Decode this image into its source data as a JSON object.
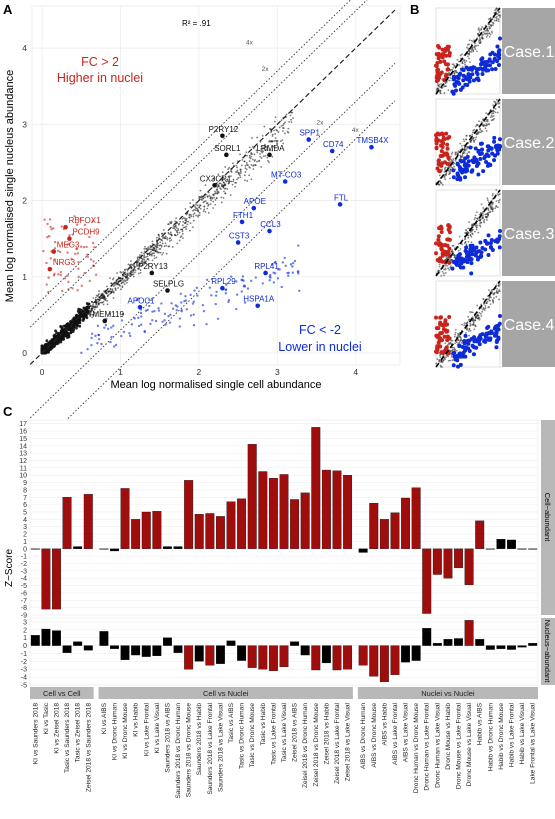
{
  "colors": {
    "cell": "#0d2bd6",
    "nuclei": "#c8241c",
    "neutral": "#111111",
    "panel_bg": "#ebebeb",
    "strip": "#b8b8b8",
    "bar": "#a00d0d",
    "bar_dark": "#000000"
  },
  "panelA": {
    "label": "A",
    "r2": "R² = .91",
    "fc_up_line1": "FC > 2",
    "fc_up_line2": "Higher in nuclei",
    "fc_down_line1": "FC < -2",
    "fc_down_line2": "Lower in nuclei",
    "xlabel": "Mean log normalised single cell abundance",
    "ylabel": "Mean log normalised single nucleus abundance",
    "line_labels": [
      "4x",
      "2x",
      "2x",
      "4x"
    ]
  },
  "panelB": {
    "label": "B",
    "cases": [
      "Case.1",
      "Case.2",
      "Case.3",
      "Case.4"
    ]
  },
  "panelC": {
    "label": "C",
    "ylabel": "Z−Score",
    "facet_top": "Cell−abundant",
    "facet_bottom": "Nucleus−abundant",
    "groups": [
      "Cell vs Cell",
      "Cell vs Nuclei",
      "Nuclei vs Nuclei"
    ]
  },
  "chart_data": [
    {
      "type": "scatter",
      "xlim": [
        0,
        4.5
      ],
      "ylim": [
        0,
        4.5
      ],
      "x_ticks": [
        "0",
        "1",
        "2",
        "3",
        "4"
      ],
      "y_ticks": [
        "0",
        "1",
        "2",
        "3",
        "4"
      ],
      "labeled_genes": [
        {
          "gene": "P2RY12",
          "x": 2.3,
          "y": 2.85,
          "group": "neutral"
        },
        {
          "gene": "SORL1",
          "x": 2.35,
          "y": 2.6,
          "group": "neutral"
        },
        {
          "gene": "LRMDA",
          "x": 2.9,
          "y": 2.6,
          "group": "neutral"
        },
        {
          "gene": "CX3CR1",
          "x": 2.2,
          "y": 2.2,
          "group": "neutral"
        },
        {
          "gene": "P2RY13",
          "x": 1.4,
          "y": 1.05,
          "group": "neutral"
        },
        {
          "gene": "SELPLG",
          "x": 1.6,
          "y": 0.82,
          "group": "neutral"
        },
        {
          "gene": "TMEM119",
          "x": 0.8,
          "y": 0.42,
          "group": "neutral"
        },
        {
          "gene": "SPP1",
          "x": 3.4,
          "y": 2.8,
          "group": "cell"
        },
        {
          "gene": "TMSB4X",
          "x": 4.2,
          "y": 2.7,
          "group": "cell"
        },
        {
          "gene": "CD74",
          "x": 3.7,
          "y": 2.65,
          "group": "cell"
        },
        {
          "gene": "MT-CO3",
          "x": 3.1,
          "y": 2.25,
          "group": "cell"
        },
        {
          "gene": "APOE",
          "x": 2.7,
          "y": 1.9,
          "group": "cell"
        },
        {
          "gene": "FTH1",
          "x": 2.55,
          "y": 1.72,
          "group": "cell"
        },
        {
          "gene": "FTL",
          "x": 3.8,
          "y": 1.95,
          "group": "cell"
        },
        {
          "gene": "CCL3",
          "x": 2.9,
          "y": 1.6,
          "group": "cell"
        },
        {
          "gene": "CST3",
          "x": 2.5,
          "y": 1.45,
          "group": "cell"
        },
        {
          "gene": "RPL41",
          "x": 2.85,
          "y": 1.05,
          "group": "cell"
        },
        {
          "gene": "RPL29",
          "x": 2.3,
          "y": 0.85,
          "group": "cell"
        },
        {
          "gene": "HSPA1A",
          "x": 2.75,
          "y": 0.62,
          "group": "cell"
        },
        {
          "gene": "APOC1",
          "x": 1.25,
          "y": 0.6,
          "group": "cell"
        },
        {
          "gene": "RBFOX1",
          "x": 0.3,
          "y": 1.65,
          "group": "nuclei"
        },
        {
          "gene": "PCDH9",
          "x": 0.35,
          "y": 1.5,
          "group": "nuclei"
        },
        {
          "gene": "MEG3",
          "x": 0.15,
          "y": 1.33,
          "group": "nuclei"
        },
        {
          "gene": "NRG3",
          "x": 0.1,
          "y": 1.1,
          "group": "nuclei"
        }
      ]
    },
    {
      "type": "bar",
      "categories": [
        "KI vs Saunders 2018",
        "KI vs Tasic",
        "KI vs Zeisel 2018",
        "Tasic vs Saunders 2018",
        "Tasic vs Zeisel 2018",
        "Zeisel 2018 vs Saunders 2018",
        "KI vs AIBS",
        "KI vs Dronc Human",
        "KI vs Dronc Mouse",
        "KI vs Habib",
        "KI vs Lake Frontal",
        "KI vs Lake Visual",
        "Saunders 2018 vs AIBS",
        "Saunders 2018 vs Dronc Human",
        "Saunders 2018 vs Dronc Mouse",
        "Saunders 2018 vs Habib",
        "Saunders 2018 vs Lake Frontal",
        "Saunders 2018 vs Lake Visual",
        "Tasic vs AIBS",
        "Tasic vs Dronc Human",
        "Tasic vs Dronc Mouse",
        "Tasic vs Habib",
        "Tasic vs Lake Frontal",
        "Tasic vs Lake Visual",
        "Zeisel 2018 vs AIBS",
        "Zeisel 2018 vs Dronc Human",
        "Zeisel 2018 vs Dronc Mouse",
        "Zeisel 2018 vs Habib",
        "Zeisel 2018 vs Lake Frontal",
        "Zeisel 2018 vs Lake Visual",
        "AIBS vs Dronc Human",
        "AIBS vs Dronc Mouse",
        "AIBS vs Habib",
        "AIBS vs Lake Frontal",
        "AIBS vs Lake Visual",
        "Dronc Human vs Dronc Mouse",
        "Dronc Human vs Lake Frontal",
        "Dronc Human vs Lake Visual",
        "Dronc Mouse vs Habib",
        "Dronc Mouse vs Lake Frontal",
        "Dronc Mouse vs Lake Visual",
        "Habib vs AIBS",
        "Habib vs Dronc Human",
        "Habib vs Dronc Mouse",
        "Habib vs Lake Frontal",
        "Habib vs Lake Visual",
        "Lake Frontal vs Lake Visual"
      ],
      "group_sizes": [
        6,
        24,
        17
      ],
      "series": [
        {
          "name": "Cell−abundant",
          "values": [
            0.0,
            -8.2,
            -8.2,
            7.0,
            0.3,
            7.4,
            0.0,
            -0.3,
            8.2,
            4.0,
            5.0,
            5.1,
            0.3,
            0.3,
            9.3,
            4.7,
            4.8,
            4.4,
            6.4,
            6.8,
            14.2,
            10.5,
            9.6,
            10.1,
            6.7,
            7.6,
            16.5,
            10.7,
            10.6,
            10.0,
            -0.5,
            6.2,
            4.0,
            4.9,
            6.9,
            8.3,
            -8.8,
            -3.5,
            -4.0,
            -2.6,
            -4.9,
            3.8,
            0.0,
            1.3,
            1.2,
            0.0,
            0.0
          ]
        },
        {
          "name": "Nucleus−abundant",
          "values": [
            1.3,
            2.1,
            1.9,
            -0.9,
            0.5,
            -0.6,
            1.8,
            -0.4,
            -1.8,
            -1.2,
            -1.4,
            -1.3,
            1.0,
            -0.9,
            -3.0,
            -2.0,
            -2.5,
            -2.3,
            0.6,
            -1.9,
            -2.8,
            -3.0,
            -3.2,
            -2.7,
            0.5,
            -1.2,
            -3.1,
            -2.2,
            -3.1,
            -3.0,
            -2.5,
            -3.9,
            -4.6,
            -3.7,
            -2.1,
            -1.9,
            2.2,
            0.3,
            0.8,
            0.9,
            3.2,
            0.8,
            -0.5,
            -0.4,
            -0.5,
            -0.2,
            0.3
          ]
        }
      ],
      "top_y_ticks": [
        "-9",
        "-8",
        "-7",
        "-6",
        "-5",
        "-4",
        "-3",
        "-2",
        "-1",
        "0",
        "1",
        "2",
        "3",
        "4",
        "5",
        "6",
        "7",
        "8",
        "9",
        "10",
        "11",
        "12",
        "13",
        "14",
        "15",
        "16",
        "17"
      ],
      "bottom_y_ticks": [
        "-5",
        "-4",
        "-3",
        "-2",
        "-1",
        "0",
        "1",
        "2",
        "3"
      ],
      "top_ylim": [
        -9,
        17.5
      ],
      "bottom_ylim": [
        -5,
        3.5
      ]
    }
  ]
}
